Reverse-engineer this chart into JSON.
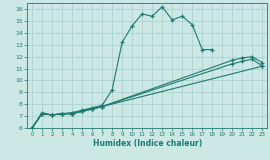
{
  "xlabel": "Humidex (Indice chaleur)",
  "xlim": [
    -0.5,
    23.5
  ],
  "ylim": [
    6,
    16.5
  ],
  "yticks": [
    6,
    7,
    8,
    9,
    10,
    11,
    12,
    13,
    14,
    15,
    16
  ],
  "xticks": [
    0,
    1,
    2,
    3,
    4,
    5,
    6,
    7,
    8,
    9,
    10,
    11,
    12,
    13,
    14,
    15,
    16,
    17,
    18,
    19,
    20,
    21,
    22,
    23
  ],
  "bg_color": "#cce8e5",
  "line_color": "#1e7a70",
  "grid_color": "#a8ceca",
  "line1_x": [
    0,
    1,
    2,
    3,
    4,
    5,
    6,
    7,
    8,
    9,
    10,
    11,
    12,
    13,
    14,
    15,
    16,
    17,
    18
  ],
  "line1_y": [
    6.0,
    7.3,
    7.1,
    7.2,
    7.3,
    7.5,
    7.7,
    7.9,
    9.2,
    13.2,
    14.6,
    15.6,
    15.4,
    16.2,
    15.1,
    15.4,
    14.7,
    12.6,
    12.6
  ],
  "line2_x": [
    0,
    1,
    2,
    3,
    4,
    5,
    6,
    7,
    23
  ],
  "line2_y": [
    6.0,
    7.2,
    7.1,
    7.2,
    7.2,
    7.4,
    7.6,
    7.8,
    11.2
  ],
  "line3_x": [
    0,
    1,
    2,
    3,
    4,
    5,
    6,
    7,
    20,
    21,
    22,
    23
  ],
  "line3_y": [
    6.0,
    7.2,
    7.1,
    7.2,
    7.2,
    7.4,
    7.6,
    7.8,
    11.7,
    11.9,
    12.0,
    11.5
  ],
  "line4_x": [
    0,
    1,
    2,
    3,
    4,
    5,
    6,
    7,
    20,
    21,
    22,
    23
  ],
  "line4_y": [
    6.0,
    7.2,
    7.1,
    7.2,
    7.2,
    7.4,
    7.6,
    7.8,
    11.4,
    11.6,
    11.8,
    11.2
  ]
}
